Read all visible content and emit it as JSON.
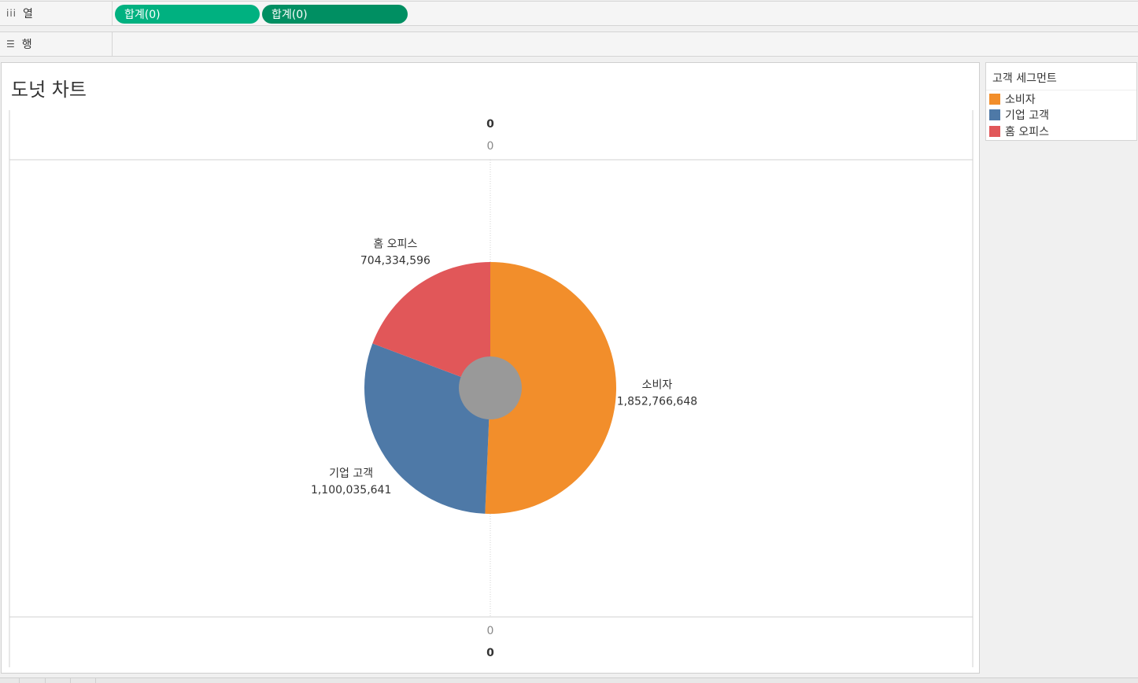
{
  "shelves": {
    "columns": {
      "label": "열",
      "icon": "iii",
      "pills": [
        "합계(0)",
        "합계(0)"
      ],
      "pill_colors": [
        "#00b180",
        "#008f62"
      ]
    },
    "rows": {
      "label": "행",
      "icon": "☰"
    }
  },
  "sheet_title": "도넛 차트",
  "legend": {
    "title": "고객 세그먼트",
    "items": [
      {
        "label": "소비자",
        "color": "#f28e2b"
      },
      {
        "label": "기업 고객",
        "color": "#4e79a7"
      },
      {
        "label": "홈 오피스",
        "color": "#e15759"
      }
    ]
  },
  "top_axis": {
    "bold": "0",
    "tick": "0"
  },
  "bottom_axis": {
    "bold": "0",
    "tick": "0"
  },
  "chart_data": {
    "type": "pie",
    "center_hole_color": "#999999",
    "categories": [
      "소비자",
      "기업 고객",
      "홈 오피스"
    ],
    "values": [
      1852766648,
      1100035641,
      704334596
    ],
    "value_labels": [
      "1,852,766,648",
      "1,100,035,641",
      "704,334,596"
    ],
    "colors": [
      "#f28e2b",
      "#4e79a7",
      "#e15759"
    ]
  }
}
